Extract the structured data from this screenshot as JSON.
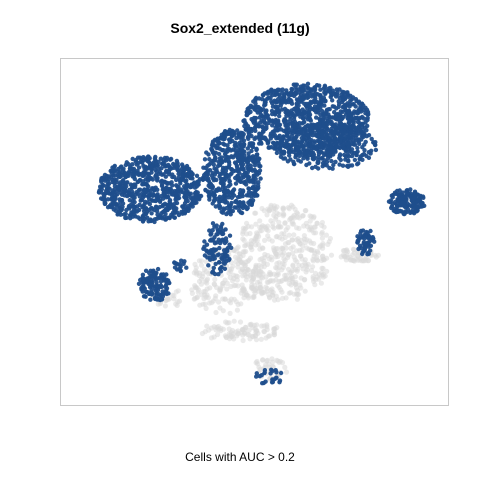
{
  "title": "Sox2_extended (11g)",
  "chart_data": {
    "type": "scatter",
    "title": "Sox2_extended (11g)",
    "xlabel": "Cells with AUC > 0.2",
    "ylabel": "",
    "grid": false,
    "legend": "none",
    "colors": {
      "above_threshold": "#1f4e8c",
      "below_threshold": "#d9d9d9"
    },
    "xlim": [
      0,
      100
    ],
    "ylim": [
      0,
      100
    ],
    "series": [
      {
        "name": "",
        "role": "below_threshold",
        "color": "#d9d9d9",
        "clusters": [
          {
            "cx": 58,
            "cy": 44,
            "rx": 13,
            "ry": 15,
            "n": 420
          },
          {
            "cx": 42,
            "cy": 35,
            "rx": 10,
            "ry": 10,
            "n": 180
          },
          {
            "cx": 46,
            "cy": 20,
            "rx": 11,
            "ry": 3,
            "n": 90
          },
          {
            "cx": 78,
            "cy": 43,
            "rx": 6,
            "ry": 2,
            "n": 50
          },
          {
            "cx": 54,
            "cy": 8,
            "rx": 5,
            "ry": 4,
            "n": 40
          },
          {
            "cx": 27,
            "cy": 30,
            "rx": 5,
            "ry": 2.5,
            "n": 25
          }
        ]
      },
      {
        "name": "",
        "role": "above_threshold",
        "color": "#1f4e8c",
        "clusters": [
          {
            "cx": 22,
            "cy": 63,
            "rx": 14,
            "ry": 10,
            "n": 700
          },
          {
            "cx": 44,
            "cy": 68,
            "rx": 8,
            "ry": 13,
            "n": 500
          },
          {
            "cx": 64,
            "cy": 84,
            "rx": 17,
            "ry": 11,
            "n": 900
          },
          {
            "cx": 69,
            "cy": 76,
            "rx": 14,
            "ry": 7,
            "n": 300
          },
          {
            "cx": 91,
            "cy": 59,
            "rx": 5,
            "ry": 4,
            "n": 150
          },
          {
            "cx": 80,
            "cy": 47,
            "rx": 2.5,
            "ry": 4,
            "n": 60
          },
          {
            "cx": 23,
            "cy": 34,
            "rx": 4.5,
            "ry": 5,
            "n": 120
          },
          {
            "cx": 40,
            "cy": 45,
            "rx": 4,
            "ry": 8,
            "n": 100
          },
          {
            "cx": 54,
            "cy": 6,
            "rx": 4,
            "ry": 2.5,
            "n": 25
          },
          {
            "cx": 30,
            "cy": 40,
            "rx": 2,
            "ry": 2,
            "n": 15
          }
        ]
      }
    ]
  }
}
